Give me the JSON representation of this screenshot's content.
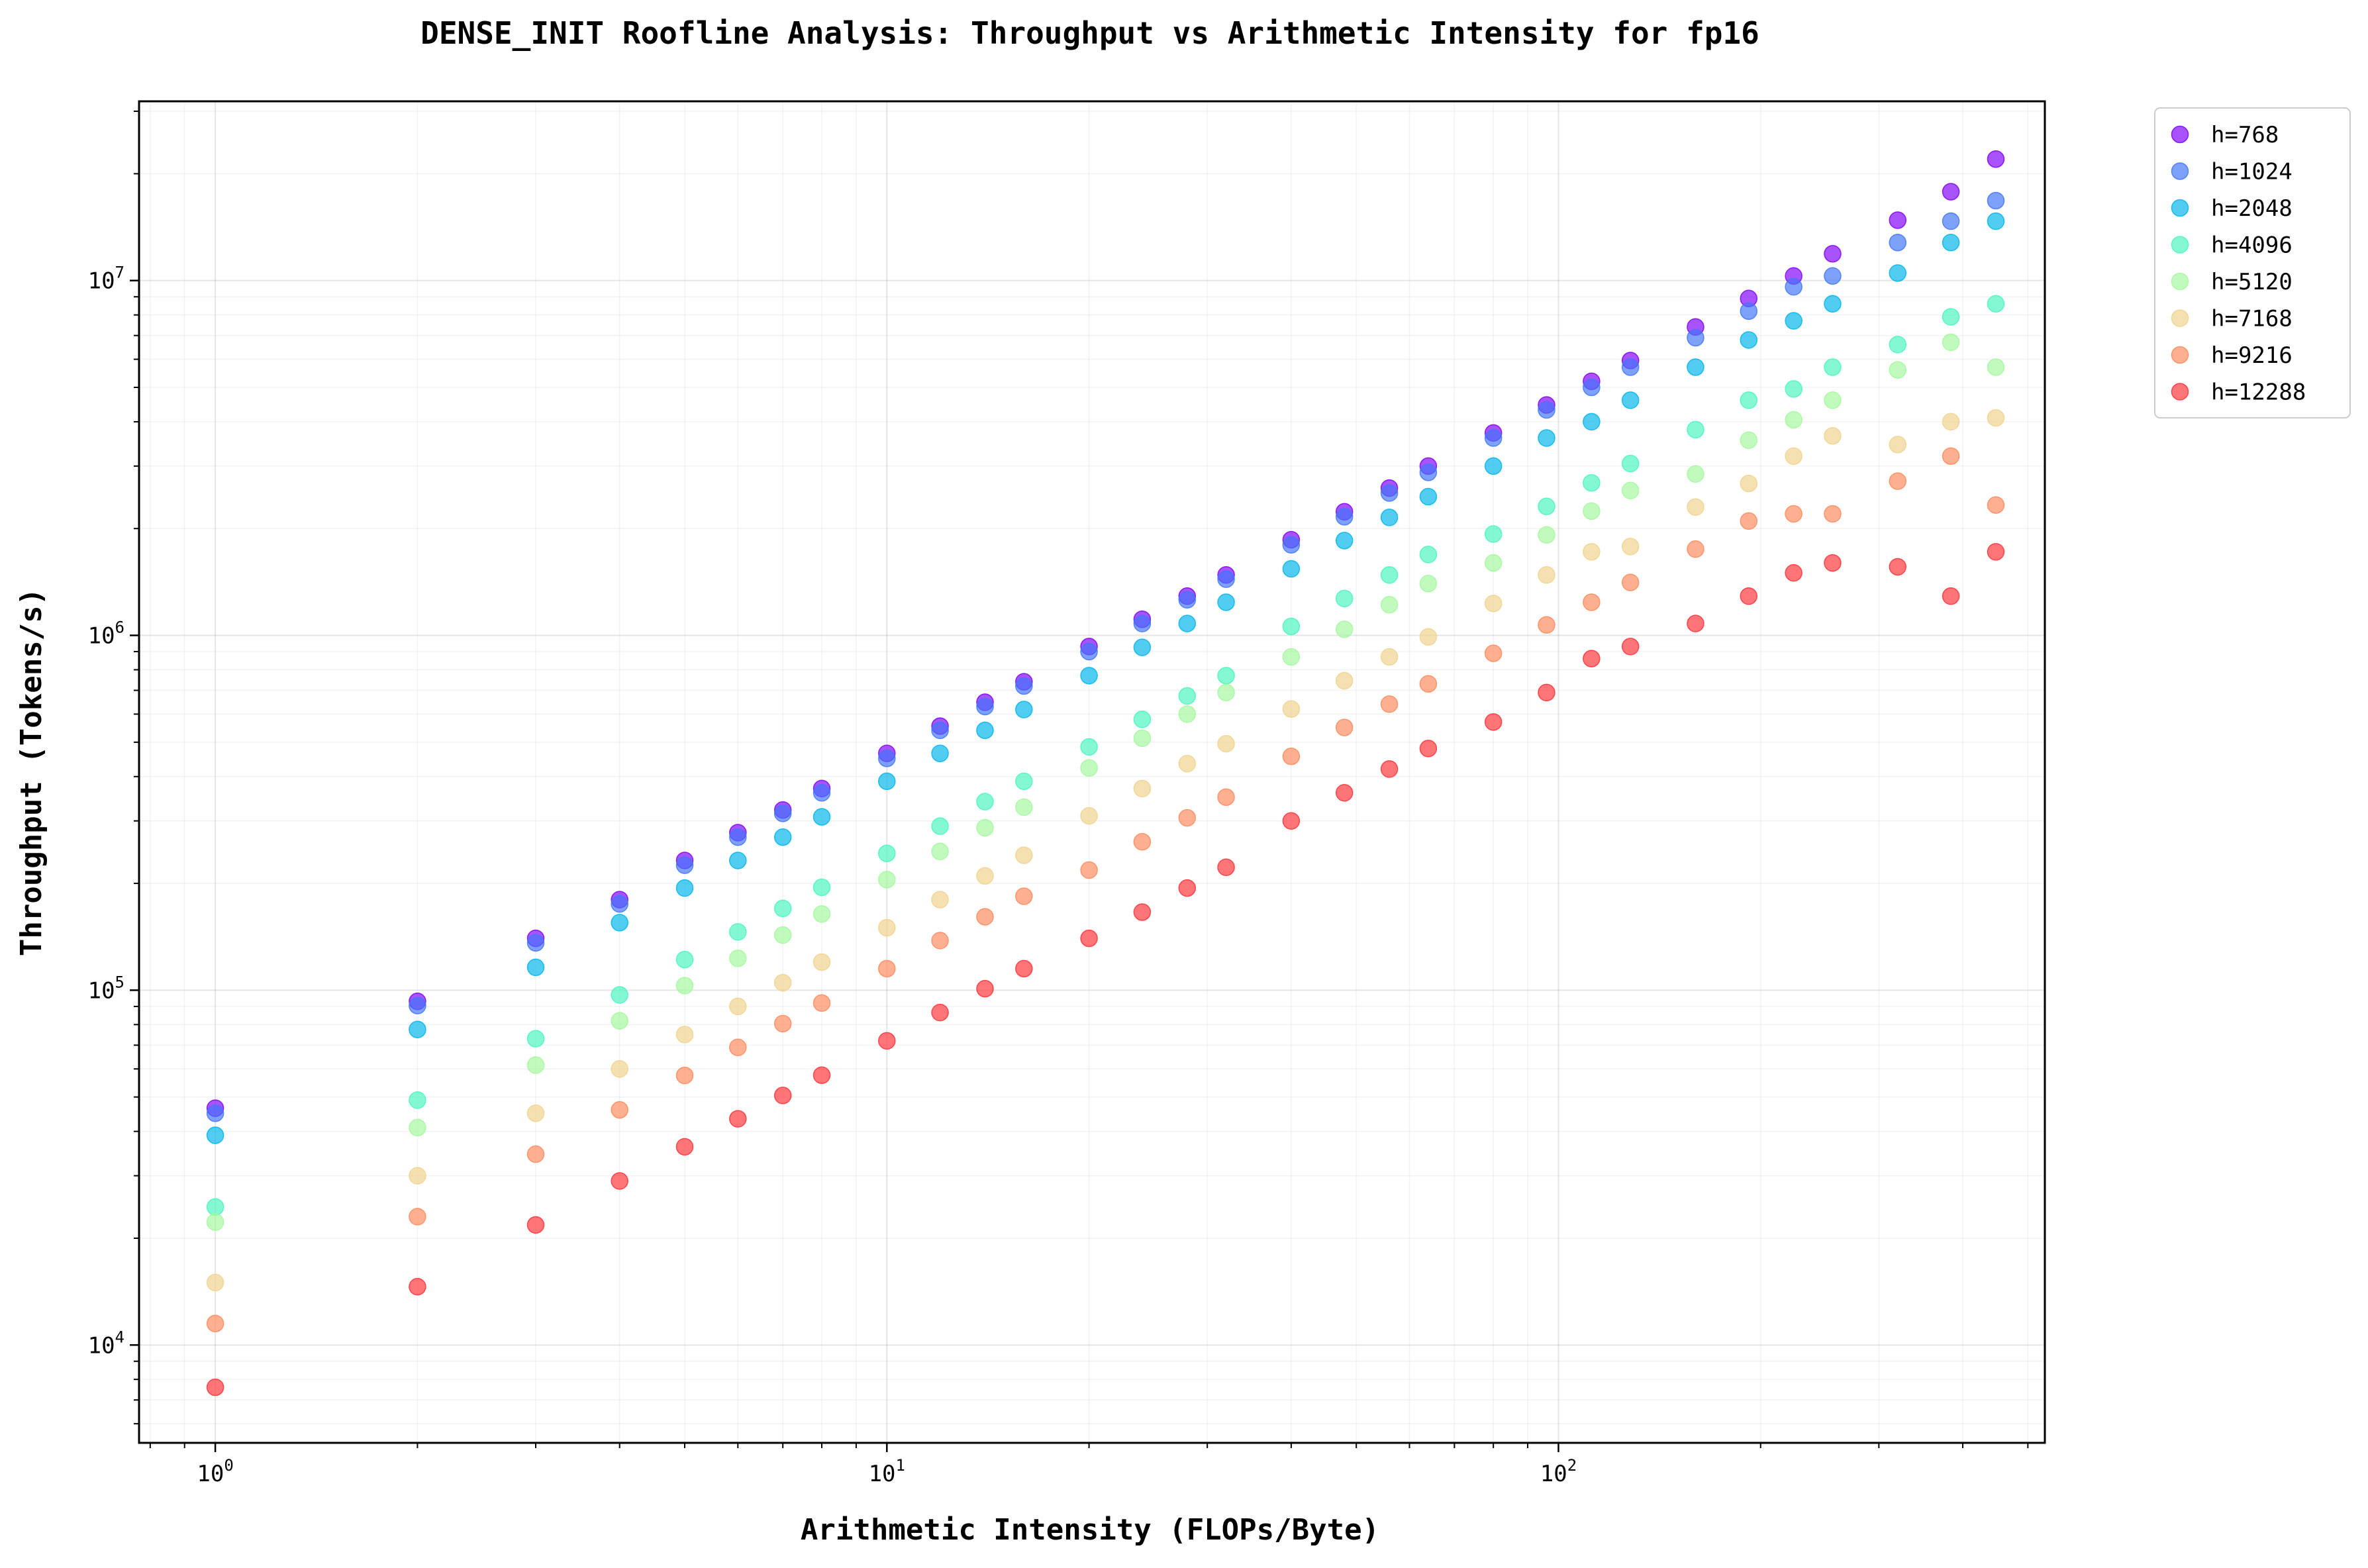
{
  "chart_data": {
    "type": "scatter",
    "title": "DENSE_INIT Roofline Analysis: Throughput vs Arithmetic Intensity for fp16",
    "xlabel": "Arithmetic Intensity (FLOPs/Byte)",
    "ylabel": "Throughput (Tokens/s)",
    "xscale": "log",
    "yscale": "log",
    "xlim": [
      0.77,
      530
    ],
    "ylim": [
      5300,
      32000000
    ],
    "x_ticks": [
      {
        "value": 1,
        "base": "10",
        "exp": "0"
      },
      {
        "value": 10,
        "base": "10",
        "exp": "1"
      },
      {
        "value": 100,
        "base": "10",
        "exp": "2"
      }
    ],
    "y_ticks": [
      {
        "value": 10000,
        "base": "10",
        "exp": "4"
      },
      {
        "value": 100000,
        "base": "10",
        "exp": "5"
      },
      {
        "value": 1000000,
        "base": "10",
        "exp": "6"
      },
      {
        "value": 10000000,
        "base": "10",
        "exp": "7"
      }
    ],
    "grid": true,
    "legend_position": "outside-top-right",
    "series": [
      {
        "name": "h=768",
        "color": "#8000ff",
        "points": [
          [
            1,
            46500
          ],
          [
            2,
            93000
          ],
          [
            3,
            140000
          ],
          [
            4,
            180000
          ],
          [
            5,
            232000
          ],
          [
            6,
            278000
          ],
          [
            7,
            322000
          ],
          [
            8,
            370000
          ],
          [
            10,
            465000
          ],
          [
            12,
            555000
          ],
          [
            14,
            648000
          ],
          [
            16,
            740000
          ],
          [
            20,
            930000
          ],
          [
            24,
            1110000
          ],
          [
            28,
            1290000
          ],
          [
            32,
            1480000
          ],
          [
            40,
            1860000
          ],
          [
            48,
            2230000
          ],
          [
            56,
            2600000
          ],
          [
            64,
            3000000
          ],
          [
            80,
            3720000
          ],
          [
            96,
            4460000
          ],
          [
            112,
            5200000
          ],
          [
            128,
            5950000
          ],
          [
            160,
            7400000
          ],
          [
            192,
            8900000
          ],
          [
            224,
            10300000
          ],
          [
            256,
            11900000
          ],
          [
            320,
            14800000
          ],
          [
            384,
            17800000
          ],
          [
            448,
            22000000
          ]
        ]
      },
      {
        "name": "h=1024",
        "color": "#4176fa",
        "points": [
          [
            1,
            45000
          ],
          [
            2,
            90500
          ],
          [
            3,
            136000
          ],
          [
            4,
            175000
          ],
          [
            5,
            225000
          ],
          [
            6,
            270000
          ],
          [
            7,
            315000
          ],
          [
            8,
            360000
          ],
          [
            10,
            450000
          ],
          [
            12,
            540000
          ],
          [
            14,
            630000
          ],
          [
            16,
            720000
          ],
          [
            20,
            900000
          ],
          [
            24,
            1080000
          ],
          [
            28,
            1260000
          ],
          [
            32,
            1440000
          ],
          [
            40,
            1800000
          ],
          [
            48,
            2160000
          ],
          [
            56,
            2520000
          ],
          [
            64,
            2880000
          ],
          [
            80,
            3600000
          ],
          [
            96,
            4320000
          ],
          [
            112,
            5000000
          ],
          [
            128,
            5700000
          ],
          [
            160,
            6900000
          ],
          [
            192,
            8200000
          ],
          [
            224,
            9600000
          ],
          [
            256,
            10300000
          ],
          [
            320,
            12800000
          ],
          [
            384,
            14700000
          ],
          [
            448,
            16800000
          ]
        ]
      },
      {
        "name": "h=2048",
        "color": "#00b5eb",
        "points": [
          [
            1,
            39000
          ],
          [
            2,
            77500
          ],
          [
            3,
            116000
          ],
          [
            4,
            155000
          ],
          [
            5,
            194000
          ],
          [
            6,
            232000
          ],
          [
            7,
            270000
          ],
          [
            8,
            308000
          ],
          [
            10,
            388000
          ],
          [
            12,
            465000
          ],
          [
            14,
            540000
          ],
          [
            16,
            618000
          ],
          [
            20,
            770000
          ],
          [
            24,
            925000
          ],
          [
            28,
            1080000
          ],
          [
            32,
            1240000
          ],
          [
            40,
            1540000
          ],
          [
            48,
            1850000
          ],
          [
            56,
            2150000
          ],
          [
            64,
            2460000
          ],
          [
            80,
            3000000
          ],
          [
            96,
            3600000
          ],
          [
            112,
            4000000
          ],
          [
            128,
            4600000
          ],
          [
            160,
            5700000
          ],
          [
            192,
            6800000
          ],
          [
            224,
            7700000
          ],
          [
            256,
            8600000
          ],
          [
            320,
            10500000
          ],
          [
            384,
            12800000
          ],
          [
            448,
            14700000
          ]
        ]
      },
      {
        "name": "h=4096",
        "color": "#49f5c0",
        "points": [
          [
            1,
            24500
          ],
          [
            2,
            49000
          ],
          [
            3,
            73000
          ],
          [
            4,
            97000
          ],
          [
            5,
            122000
          ],
          [
            6,
            146000
          ],
          [
            7,
            170000
          ],
          [
            8,
            195000
          ],
          [
            10,
            243000
          ],
          [
            12,
            290000
          ],
          [
            14,
            340000
          ],
          [
            16,
            388000
          ],
          [
            20,
            485000
          ],
          [
            24,
            580000
          ],
          [
            28,
            675000
          ],
          [
            32,
            770000
          ],
          [
            40,
            1060000
          ],
          [
            48,
            1270000
          ],
          [
            56,
            1480000
          ],
          [
            64,
            1690000
          ],
          [
            80,
            1930000
          ],
          [
            96,
            2310000
          ],
          [
            112,
            2690000
          ],
          [
            128,
            3050000
          ],
          [
            160,
            3800000
          ],
          [
            192,
            4600000
          ],
          [
            224,
            4950000
          ],
          [
            256,
            5700000
          ],
          [
            320,
            6600000
          ],
          [
            384,
            7900000
          ],
          [
            448,
            8600000
          ]
        ]
      },
      {
        "name": "h=5120",
        "color": "#a4f89e",
        "points": [
          [
            1,
            22200
          ],
          [
            2,
            41000
          ],
          [
            3,
            61500
          ],
          [
            4,
            82000
          ],
          [
            5,
            103000
          ],
          [
            6,
            123000
          ],
          [
            7,
            143000
          ],
          [
            8,
            164000
          ],
          [
            10,
            205000
          ],
          [
            12,
            246000
          ],
          [
            14,
            287000
          ],
          [
            16,
            328000
          ],
          [
            20,
            423000
          ],
          [
            24,
            513000
          ],
          [
            28,
            600000
          ],
          [
            32,
            690000
          ],
          [
            40,
            870000
          ],
          [
            48,
            1040000
          ],
          [
            56,
            1220000
          ],
          [
            64,
            1400000
          ],
          [
            80,
            1600000
          ],
          [
            96,
            1920000
          ],
          [
            112,
            2240000
          ],
          [
            128,
            2560000
          ],
          [
            160,
            2850000
          ],
          [
            192,
            3550000
          ],
          [
            224,
            4050000
          ],
          [
            256,
            4600000
          ],
          [
            320,
            5600000
          ],
          [
            384,
            6700000
          ],
          [
            448,
            5700000
          ]
        ]
      },
      {
        "name": "h=7168",
        "color": "#f0d28c",
        "points": [
          [
            1,
            15000
          ],
          [
            2,
            30000
          ],
          [
            3,
            45000
          ],
          [
            4,
            60000
          ],
          [
            5,
            75000
          ],
          [
            6,
            90000
          ],
          [
            7,
            105000
          ],
          [
            8,
            120000
          ],
          [
            10,
            150000
          ],
          [
            12,
            180000
          ],
          [
            14,
            210000
          ],
          [
            16,
            240000
          ],
          [
            20,
            310000
          ],
          [
            24,
            370000
          ],
          [
            28,
            435000
          ],
          [
            32,
            495000
          ],
          [
            40,
            620000
          ],
          [
            48,
            745000
          ],
          [
            56,
            870000
          ],
          [
            64,
            990000
          ],
          [
            80,
            1230000
          ],
          [
            96,
            1480000
          ],
          [
            112,
            1720000
          ],
          [
            128,
            1780000
          ],
          [
            160,
            2300000
          ],
          [
            192,
            2680000
          ],
          [
            224,
            3200000
          ],
          [
            256,
            3650000
          ],
          [
            320,
            3450000
          ],
          [
            384,
            4000000
          ],
          [
            448,
            4100000
          ]
        ]
      },
      {
        "name": "h=9216",
        "color": "#ff8a5c",
        "points": [
          [
            1,
            11500
          ],
          [
            2,
            23000
          ],
          [
            3,
            34500
          ],
          [
            4,
            46000
          ],
          [
            5,
            57500
          ],
          [
            6,
            69000
          ],
          [
            7,
            80500
          ],
          [
            8,
            92000
          ],
          [
            10,
            115000
          ],
          [
            12,
            138000
          ],
          [
            14,
            161000
          ],
          [
            16,
            184000
          ],
          [
            20,
            218000
          ],
          [
            24,
            262000
          ],
          [
            28,
            306000
          ],
          [
            32,
            350000
          ],
          [
            40,
            456000
          ],
          [
            48,
            550000
          ],
          [
            56,
            640000
          ],
          [
            64,
            730000
          ],
          [
            80,
            890000
          ],
          [
            96,
            1070000
          ],
          [
            112,
            1240000
          ],
          [
            128,
            1410000
          ],
          [
            160,
            1750000
          ],
          [
            192,
            2100000
          ],
          [
            224,
            2200000
          ],
          [
            256,
            2200000
          ],
          [
            320,
            2720000
          ],
          [
            384,
            3200000
          ],
          [
            448,
            2330000
          ]
        ]
      },
      {
        "name": "h=12288",
        "color": "#ff3338",
        "points": [
          [
            1,
            7600
          ],
          [
            2,
            14600
          ],
          [
            3,
            21800
          ],
          [
            4,
            29000
          ],
          [
            5,
            36200
          ],
          [
            6,
            43400
          ],
          [
            7,
            50500
          ],
          [
            8,
            57600
          ],
          [
            10,
            72000
          ],
          [
            12,
            86500
          ],
          [
            14,
            101000
          ],
          [
            16,
            115000
          ],
          [
            20,
            140000
          ],
          [
            24,
            166000
          ],
          [
            28,
            194000
          ],
          [
            32,
            222000
          ],
          [
            40,
            300000
          ],
          [
            48,
            360000
          ],
          [
            56,
            420000
          ],
          [
            64,
            480000
          ],
          [
            80,
            570000
          ],
          [
            96,
            690000
          ],
          [
            112,
            860000
          ],
          [
            128,
            930000
          ],
          [
            160,
            1080000
          ],
          [
            192,
            1290000
          ],
          [
            224,
            1500000
          ],
          [
            256,
            1600000
          ],
          [
            320,
            1560000
          ],
          [
            384,
            1290000
          ],
          [
            448,
            1720000
          ]
        ]
      }
    ]
  }
}
